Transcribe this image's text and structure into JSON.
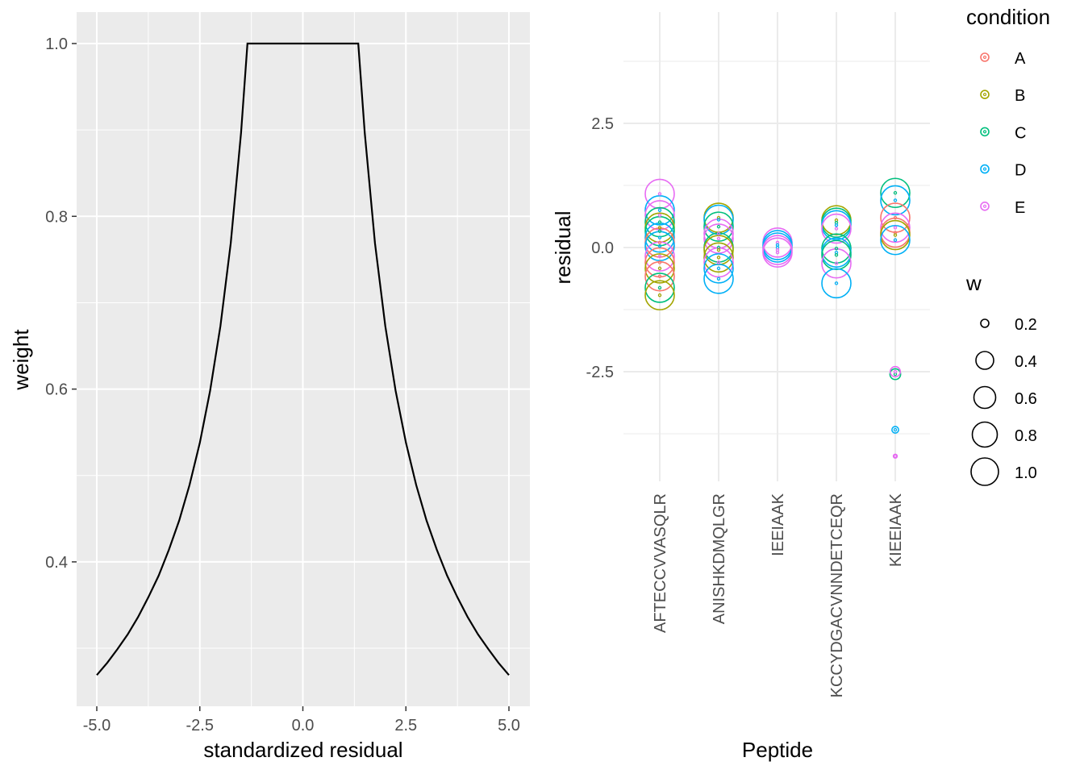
{
  "chart_data": [
    {
      "type": "line",
      "title": "",
      "xlabel": "standardized residual",
      "ylabel": "weight",
      "xlim": [
        -5.5,
        5.5
      ],
      "ylim": [
        0.235,
        1.075
      ],
      "x_ticks": [
        "-5.0",
        "-2.5",
        "0.0",
        "2.5",
        "5.0"
      ],
      "x_tick_values": [
        -5,
        -2.5,
        0,
        2.5,
        5
      ],
      "y_ticks": [
        "0.4",
        "0.6",
        "0.8",
        "1.0"
      ],
      "y_tick_values": [
        0.4,
        0.6,
        0.8,
        1.0
      ],
      "grid": true,
      "x": [
        -5,
        -4.75,
        -4.5,
        -4.25,
        -4,
        -3.75,
        -3.5,
        -3.25,
        -3,
        -2.75,
        -2.5,
        -2.25,
        -2,
        -1.75,
        -1.5,
        -1.345,
        1.345,
        1.5,
        1.75,
        2,
        2.25,
        2.5,
        2.75,
        3,
        3.25,
        3.5,
        3.75,
        4,
        4.25,
        4.5,
        4.75,
        5
      ],
      "y": [
        0.269,
        0.283,
        0.299,
        0.316,
        0.336,
        0.359,
        0.384,
        0.414,
        0.448,
        0.489,
        0.538,
        0.598,
        0.673,
        0.769,
        0.897,
        1,
        1,
        0.897,
        0.769,
        0.673,
        0.598,
        0.538,
        0.489,
        0.448,
        0.414,
        0.384,
        0.359,
        0.336,
        0.316,
        0.299,
        0.283,
        0.269
      ]
    },
    {
      "type": "scatter",
      "xlabel": "Peptide",
      "ylabel": "residual",
      "categories": [
        "AFTECCVVASQLR",
        "ANISHKDMQLGR",
        "IEEIAAK",
        "KCCYDGACVNNDETCEQR",
        "KIEEIAAK"
      ],
      "ylim": [
        -4.7,
        4.7
      ],
      "y_ticks": [
        "-2.5",
        "0.0",
        "2.5"
      ],
      "y_tick_values": [
        -2.5,
        0,
        2.5
      ],
      "grid": true,
      "legend_position": "right",
      "color_legend": {
        "title": "condition",
        "levels": [
          "A",
          "B",
          "C",
          "D",
          "E"
        ],
        "colors": [
          "#F8766D",
          "#A3A500",
          "#00BF7D",
          "#00B0F6",
          "#E76BF3"
        ]
      },
      "size_legend": {
        "title": "w",
        "labels": [
          "0.2",
          "0.4",
          "0.6",
          "0.8",
          "1.0"
        ],
        "values": [
          0.2,
          0.4,
          0.6,
          0.8,
          1.0
        ]
      },
      "points": [
        {
          "peptide": 0,
          "condition": "E",
          "residual": 1.08,
          "w": 1
        },
        {
          "peptide": 0,
          "condition": "D",
          "residual": 0.75,
          "w": 1
        },
        {
          "peptide": 0,
          "condition": "E",
          "residual": 0.65,
          "w": 1
        },
        {
          "peptide": 0,
          "condition": "C",
          "residual": 0.51,
          "w": 1
        },
        {
          "peptide": 0,
          "condition": "B",
          "residual": 0.4,
          "w": 1
        },
        {
          "peptide": 0,
          "condition": "C",
          "residual": 0.33,
          "w": 1
        },
        {
          "peptide": 0,
          "condition": "D",
          "residual": 0.2,
          "w": 1
        },
        {
          "peptide": 0,
          "condition": "A",
          "residual": 0.1,
          "w": 1
        },
        {
          "peptide": 0,
          "condition": "D",
          "residual": 0.03,
          "w": 1
        },
        {
          "peptide": 0,
          "condition": "E",
          "residual": -0.18,
          "w": 1
        },
        {
          "peptide": 0,
          "condition": "A",
          "residual": -0.3,
          "w": 1
        },
        {
          "peptide": 0,
          "condition": "B",
          "residual": -0.42,
          "w": 1
        },
        {
          "peptide": 0,
          "condition": "A",
          "residual": -0.58,
          "w": 1
        },
        {
          "peptide": 0,
          "condition": "C",
          "residual": -0.81,
          "w": 1
        },
        {
          "peptide": 0,
          "condition": "B",
          "residual": -0.96,
          "w": 1
        },
        {
          "peptide": 1,
          "condition": "B",
          "residual": 0.6,
          "w": 1
        },
        {
          "peptide": 1,
          "condition": "D",
          "residual": 0.56,
          "w": 1
        },
        {
          "peptide": 1,
          "condition": "C",
          "residual": 0.42,
          "w": 1
        },
        {
          "peptide": 1,
          "condition": "E",
          "residual": 0.28,
          "w": 1
        },
        {
          "peptide": 1,
          "condition": "E",
          "residual": 0.18,
          "w": 1
        },
        {
          "peptide": 1,
          "condition": "C",
          "residual": 0.0,
          "w": 1
        },
        {
          "peptide": 1,
          "condition": "B",
          "residual": -0.05,
          "w": 1
        },
        {
          "peptide": 1,
          "condition": "B",
          "residual": -0.2,
          "w": 1
        },
        {
          "peptide": 1,
          "condition": "E",
          "residual": -0.3,
          "w": 1
        },
        {
          "peptide": 1,
          "condition": "D",
          "residual": -0.42,
          "w": 1
        },
        {
          "peptide": 1,
          "condition": "D",
          "residual": -0.63,
          "w": 1
        },
        {
          "peptide": 2,
          "condition": "E",
          "residual": 0.1,
          "w": 1
        },
        {
          "peptide": 2,
          "condition": "D",
          "residual": 0.05,
          "w": 1
        },
        {
          "peptide": 2,
          "condition": "D",
          "residual": 0.0,
          "w": 1
        },
        {
          "peptide": 2,
          "condition": "E",
          "residual": -0.05,
          "w": 1
        },
        {
          "peptide": 2,
          "condition": "E",
          "residual": -0.1,
          "w": 1
        },
        {
          "peptide": 3,
          "condition": "B",
          "residual": 0.55,
          "w": 1
        },
        {
          "peptide": 3,
          "condition": "C",
          "residual": 0.5,
          "w": 1
        },
        {
          "peptide": 3,
          "condition": "D",
          "residual": 0.45,
          "w": 1
        },
        {
          "peptide": 3,
          "condition": "E",
          "residual": 0.38,
          "w": 1
        },
        {
          "peptide": 3,
          "condition": "C",
          "residual": -0.02,
          "w": 1
        },
        {
          "peptide": 3,
          "condition": "D",
          "residual": -0.1,
          "w": 1
        },
        {
          "peptide": 3,
          "condition": "C",
          "residual": -0.15,
          "w": 1
        },
        {
          "peptide": 3,
          "condition": "E",
          "residual": -0.32,
          "w": 1
        },
        {
          "peptide": 3,
          "condition": "D",
          "residual": -0.72,
          "w": 1
        },
        {
          "peptide": 4,
          "condition": "C",
          "residual": 1.1,
          "w": 1
        },
        {
          "peptide": 4,
          "condition": "D",
          "residual": 0.95,
          "w": 1
        },
        {
          "peptide": 4,
          "condition": "A",
          "residual": 0.6,
          "w": 1
        },
        {
          "peptide": 4,
          "condition": "E",
          "residual": 0.4,
          "w": 1
        },
        {
          "peptide": 4,
          "condition": "A",
          "residual": 0.3,
          "w": 1
        },
        {
          "peptide": 4,
          "condition": "B",
          "residual": 0.25,
          "w": 1
        },
        {
          "peptide": 4,
          "condition": "D",
          "residual": 0.15,
          "w": 1
        },
        {
          "peptide": 4,
          "condition": "C",
          "residual": -2.55,
          "w": 0.36
        },
        {
          "peptide": 4,
          "condition": "E",
          "residual": -2.5,
          "w": 0.34
        },
        {
          "peptide": 4,
          "condition": "D",
          "residual": -3.67,
          "w": 0.22
        },
        {
          "peptide": 4,
          "condition": "E",
          "residual": -4.2,
          "w": 0.12
        }
      ]
    }
  ]
}
